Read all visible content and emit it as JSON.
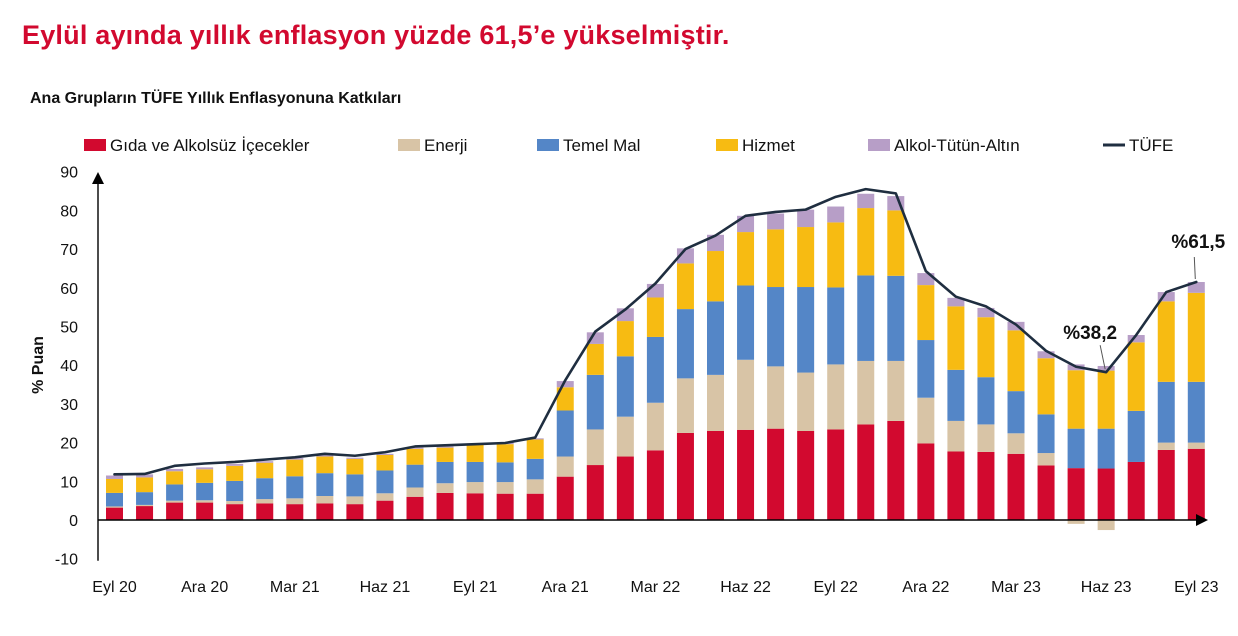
{
  "headline": "Eylül ayında yıllık enflasyon yüzde 61,5’e yükselmiştir.",
  "chart_data": {
    "type": "bar",
    "stacked": true,
    "title": "Ana Grupların TÜFE Yıllık Enflasyonuna Katkıları",
    "ylabel": "% Puan",
    "xlabel": "",
    "ylim": [
      -10,
      90
    ],
    "yticks": [
      90,
      80,
      70,
      60,
      50,
      40,
      30,
      20,
      10,
      0,
      -10
    ],
    "xtick_labels": [
      {
        "index": 0,
        "label": "Eyl 20"
      },
      {
        "index": 3,
        "label": "Ara 20"
      },
      {
        "index": 6,
        "label": "Mar 21"
      },
      {
        "index": 9,
        "label": "Haz 21"
      },
      {
        "index": 12,
        "label": "Eyl 21"
      },
      {
        "index": 15,
        "label": "Ara 21"
      },
      {
        "index": 18,
        "label": "Mar 22"
      },
      {
        "index": 21,
        "label": "Haz 22"
      },
      {
        "index": 24,
        "label": "Eyl 22"
      },
      {
        "index": 27,
        "label": "Ara 22"
      },
      {
        "index": 30,
        "label": "Mar 23"
      },
      {
        "index": 33,
        "label": "Haz 23"
      },
      {
        "index": 36,
        "label": "Eyl 23"
      }
    ],
    "categories": [
      "Eyl 20",
      "Eki 20",
      "Kas 20",
      "Ara 20",
      "Oca 21",
      "Şub 21",
      "Mar 21",
      "Nis 21",
      "May 21",
      "Haz 21",
      "Tem 21",
      "Ağu 21",
      "Eyl 21",
      "Eki 21",
      "Kas 21",
      "Ara 21",
      "Oca 22",
      "Şub 22",
      "Mar 22",
      "Nis 22",
      "May 22",
      "Haz 22",
      "Tem 22",
      "Ağu 22",
      "Eyl 22",
      "Eki 22",
      "Kas 22",
      "Ara 22",
      "Oca 23",
      "Şub 23",
      "Mar 23",
      "Nis 23",
      "May 23",
      "Haz 23",
      "Tem 23",
      "Ağu 23",
      "Eyl 23"
    ],
    "series": [
      {
        "name": "Gıda ve Alkolsüz İçecekler",
        "color": "#d2092f",
        "values": [
          3.2,
          3.6,
          4.5,
          4.5,
          4.1,
          4.3,
          4.1,
          4.3,
          4.1,
          5.0,
          6.0,
          7.0,
          6.9,
          6.8,
          6.8,
          11.2,
          14.2,
          16.4,
          18.0,
          22.5,
          23.0,
          23.3,
          23.6,
          23.0,
          23.4,
          24.7,
          25.6,
          19.8,
          17.7,
          17.6,
          17.1,
          14.1,
          13.4,
          13.3,
          15.0,
          18.1,
          18.4
        ]
      },
      {
        "name": "Enerji",
        "color": "#d8c4a6",
        "values": [
          0.3,
          0.3,
          0.5,
          0.6,
          0.8,
          1.1,
          1.5,
          1.9,
          2.0,
          1.9,
          2.4,
          2.5,
          2.9,
          3.0,
          3.7,
          5.2,
          9.2,
          10.3,
          12.3,
          14.1,
          14.5,
          18.1,
          16.1,
          15.1,
          16.8,
          16.4,
          15.5,
          11.8,
          7.9,
          7.1,
          5.3,
          3.2,
          -1.0,
          -2.6,
          0.0,
          1.9,
          1.6
        ]
      },
      {
        "name": "Temel Mal",
        "color": "#5486c7",
        "values": [
          3.5,
          3.3,
          4.2,
          4.5,
          5.2,
          5.4,
          5.7,
          5.9,
          5.7,
          5.9,
          5.9,
          5.5,
          5.2,
          5.1,
          5.3,
          11.9,
          14.1,
          15.6,
          17.0,
          17.9,
          19.0,
          19.2,
          20.5,
          22.1,
          19.9,
          22.1,
          22.0,
          14.9,
          13.2,
          12.2,
          10.9,
          10.0,
          10.2,
          10.3,
          13.2,
          15.7,
          15.7
        ]
      },
      {
        "name": "Hizmet",
        "color": "#f7bb12",
        "values": [
          3.6,
          3.8,
          3.4,
          3.5,
          3.9,
          4.0,
          4.3,
          4.3,
          4.0,
          4.0,
          4.1,
          3.7,
          4.4,
          4.7,
          5.0,
          6.0,
          8.0,
          9.1,
          10.2,
          11.8,
          13.0,
          13.8,
          14.9,
          15.5,
          16.8,
          17.4,
          16.9,
          14.2,
          16.4,
          15.5,
          15.7,
          14.5,
          15.1,
          15.0,
          17.7,
          20.8,
          23.0
        ]
      },
      {
        "name": "Alkol-Tütün-Altın",
        "color": "#b79ec7",
        "values": [
          0.9,
          0.8,
          0.6,
          0.5,
          0.5,
          0.4,
          0.4,
          0.4,
          0.3,
          0.3,
          0.3,
          0.3,
          0.4,
          0.5,
          0.3,
          1.6,
          3.0,
          3.3,
          3.5,
          3.9,
          4.2,
          4.2,
          4.1,
          4.5,
          4.1,
          3.7,
          3.7,
          3.1,
          2.2,
          2.4,
          2.2,
          1.8,
          1.5,
          1.2,
          1.9,
          2.4,
          2.8
        ]
      },
      {
        "name": "TÜFE",
        "color": "#1f2e40",
        "kind": "line",
        "values": [
          11.8,
          11.9,
          14.0,
          14.6,
          15.0,
          15.6,
          16.2,
          17.1,
          16.6,
          17.5,
          19.0,
          19.3,
          19.6,
          19.9,
          21.3,
          36.1,
          48.7,
          54.4,
          61.1,
          70.0,
          73.5,
          78.6,
          79.6,
          80.2,
          83.5,
          85.5,
          84.4,
          64.3,
          57.7,
          55.2,
          50.5,
          43.7,
          39.6,
          38.2,
          47.8,
          58.9,
          61.5
        ]
      }
    ],
    "annotations": [
      {
        "text": "%38,2",
        "index": 33,
        "value": 38.2
      },
      {
        "text": "%61,5",
        "index": 36,
        "value": 61.5
      }
    ]
  }
}
